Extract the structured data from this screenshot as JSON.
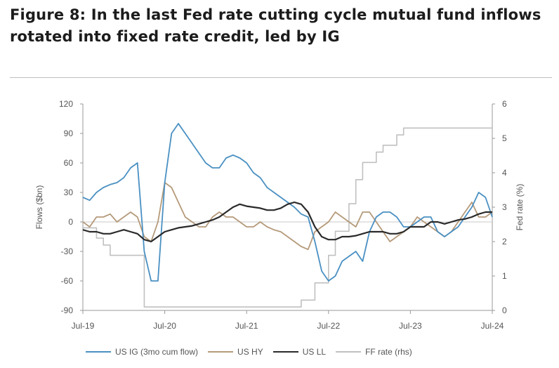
{
  "figure": {
    "title": "Figure 8: In the last Fed rate cutting cycle mutual fund inflows rotated into fixed rate credit, led by IG"
  },
  "chart_data": {
    "type": "line",
    "xlabel": "",
    "ylabel": "Flows ($bn)",
    "y2label": "Fed rate (%)",
    "x_ticks": [
      "Jul-19",
      "Jul-20",
      "Jul-21",
      "Jul-22",
      "Jul-23",
      "Jul-24"
    ],
    "ylim": [
      -90,
      120
    ],
    "y_ticks": [
      "120",
      "90",
      "60",
      "30",
      "0",
      "-30",
      "-60",
      "-90"
    ],
    "y2lim": [
      0,
      6
    ],
    "y2_ticks": [
      "6",
      "5",
      "4",
      "3",
      "2",
      "1",
      "0"
    ],
    "grid": false,
    "legend": "bottom",
    "series": [
      {
        "name": "US IG (3mo cum flow)",
        "axis": "left",
        "color": "#4a90c2",
        "x": [
          "2019-07",
          "2019-08",
          "2019-09",
          "2019-10",
          "2019-11",
          "2019-12",
          "2020-01",
          "2020-02",
          "2020-03",
          "2020-04",
          "2020-05",
          "2020-06",
          "2020-07",
          "2020-08",
          "2020-09",
          "2020-10",
          "2020-11",
          "2020-12",
          "2021-01",
          "2021-02",
          "2021-03",
          "2021-04",
          "2021-05",
          "2021-06",
          "2021-07",
          "2021-08",
          "2021-09",
          "2021-10",
          "2021-11",
          "2021-12",
          "2022-01",
          "2022-02",
          "2022-03",
          "2022-04",
          "2022-05",
          "2022-06",
          "2022-07",
          "2022-08",
          "2022-09",
          "2022-10",
          "2022-11",
          "2022-12",
          "2023-01",
          "2023-02",
          "2023-03",
          "2023-04",
          "2023-05",
          "2023-06",
          "2023-07",
          "2023-08",
          "2023-09",
          "2023-10",
          "2023-11",
          "2023-12",
          "2024-01",
          "2024-02",
          "2024-03",
          "2024-04",
          "2024-05",
          "2024-06",
          "2024-07"
        ],
        "values": [
          25,
          22,
          30,
          35,
          38,
          40,
          45,
          55,
          60,
          -30,
          -60,
          -60,
          40,
          90,
          100,
          90,
          80,
          70,
          60,
          55,
          55,
          65,
          68,
          65,
          60,
          50,
          45,
          35,
          30,
          25,
          20,
          15,
          8,
          5,
          -20,
          -50,
          -60,
          -55,
          -40,
          -35,
          -30,
          -40,
          -10,
          5,
          10,
          10,
          5,
          -5,
          -5,
          0,
          5,
          5,
          -10,
          -15,
          -10,
          -5,
          5,
          15,
          30,
          25,
          5
        ]
      },
      {
        "name": "US HY",
        "axis": "left",
        "color": "#b59a7a",
        "x": [
          "2019-07",
          "2019-08",
          "2019-09",
          "2019-10",
          "2019-11",
          "2019-12",
          "2020-01",
          "2020-02",
          "2020-03",
          "2020-04",
          "2020-05",
          "2020-06",
          "2020-07",
          "2020-08",
          "2020-09",
          "2020-10",
          "2020-11",
          "2020-12",
          "2021-01",
          "2021-02",
          "2021-03",
          "2021-04",
          "2021-05",
          "2021-06",
          "2021-07",
          "2021-08",
          "2021-09",
          "2021-10",
          "2021-11",
          "2021-12",
          "2022-01",
          "2022-02",
          "2022-03",
          "2022-04",
          "2022-05",
          "2022-06",
          "2022-07",
          "2022-08",
          "2022-09",
          "2022-10",
          "2022-11",
          "2022-12",
          "2023-01",
          "2023-02",
          "2023-03",
          "2023-04",
          "2023-05",
          "2023-06",
          "2023-07",
          "2023-08",
          "2023-09",
          "2023-10",
          "2023-11",
          "2023-12",
          "2024-01",
          "2024-02",
          "2024-03",
          "2024-04",
          "2024-05",
          "2024-06",
          "2024-07"
        ],
        "values": [
          0,
          -5,
          5,
          5,
          8,
          0,
          5,
          10,
          5,
          -15,
          -20,
          0,
          40,
          35,
          20,
          5,
          0,
          -5,
          -5,
          5,
          10,
          5,
          5,
          0,
          -5,
          -5,
          0,
          -5,
          -8,
          -10,
          -15,
          -20,
          -25,
          -28,
          -10,
          -5,
          0,
          10,
          5,
          0,
          -5,
          10,
          10,
          0,
          -10,
          -20,
          -15,
          -10,
          -5,
          5,
          0,
          -5,
          -10,
          -15,
          -10,
          0,
          10,
          20,
          5,
          5,
          10
        ]
      },
      {
        "name": "US LL",
        "axis": "left",
        "color": "#2a2a2a",
        "x": [
          "2019-07",
          "2019-08",
          "2019-09",
          "2019-10",
          "2019-11",
          "2019-12",
          "2020-01",
          "2020-02",
          "2020-03",
          "2020-04",
          "2020-05",
          "2020-06",
          "2020-07",
          "2020-08",
          "2020-09",
          "2020-10",
          "2020-11",
          "2020-12",
          "2021-01",
          "2021-02",
          "2021-03",
          "2021-04",
          "2021-05",
          "2021-06",
          "2021-07",
          "2021-08",
          "2021-09",
          "2021-10",
          "2021-11",
          "2021-12",
          "2022-01",
          "2022-02",
          "2022-03",
          "2022-04",
          "2022-05",
          "2022-06",
          "2022-07",
          "2022-08",
          "2022-09",
          "2022-10",
          "2022-11",
          "2022-12",
          "2023-01",
          "2023-02",
          "2023-03",
          "2023-04",
          "2023-05",
          "2023-06",
          "2023-07",
          "2023-08",
          "2023-09",
          "2023-10",
          "2023-11",
          "2023-12",
          "2024-01",
          "2024-02",
          "2024-03",
          "2024-04",
          "2024-05",
          "2024-06",
          "2024-07"
        ],
        "values": [
          -8,
          -10,
          -10,
          -12,
          -12,
          -10,
          -8,
          -10,
          -12,
          -18,
          -20,
          -15,
          -10,
          -8,
          -6,
          -5,
          -4,
          -2,
          0,
          2,
          5,
          10,
          15,
          18,
          16,
          15,
          14,
          12,
          12,
          14,
          18,
          20,
          18,
          10,
          -5,
          -15,
          -18,
          -18,
          -15,
          -15,
          -14,
          -12,
          -10,
          -10,
          -10,
          -12,
          -12,
          -10,
          -5,
          -5,
          -5,
          0,
          0,
          -2,
          0,
          2,
          3,
          5,
          8,
          10,
          10
        ]
      },
      {
        "name": "FF rate (rhs)",
        "axis": "right",
        "color": "#c0c0c0",
        "x": [
          "2019-07",
          "2019-08",
          "2019-09",
          "2019-10",
          "2019-11",
          "2020-03",
          "2020-04",
          "2022-02",
          "2022-03",
          "2022-04",
          "2022-05",
          "2022-06",
          "2022-07",
          "2022-08",
          "2022-09",
          "2022-10",
          "2022-11",
          "2022-12",
          "2023-01",
          "2023-02",
          "2023-03",
          "2023-04",
          "2023-05",
          "2023-06",
          "2023-07",
          "2024-07"
        ],
        "values": [
          2.4,
          2.4,
          2.1,
          1.9,
          1.6,
          1.6,
          0.1,
          0.1,
          0.3,
          0.3,
          0.8,
          0.8,
          1.6,
          2.3,
          2.3,
          3.1,
          3.8,
          4.3,
          4.3,
          4.6,
          4.8,
          4.8,
          5.1,
          5.3,
          5.3,
          5.3
        ]
      }
    ]
  }
}
